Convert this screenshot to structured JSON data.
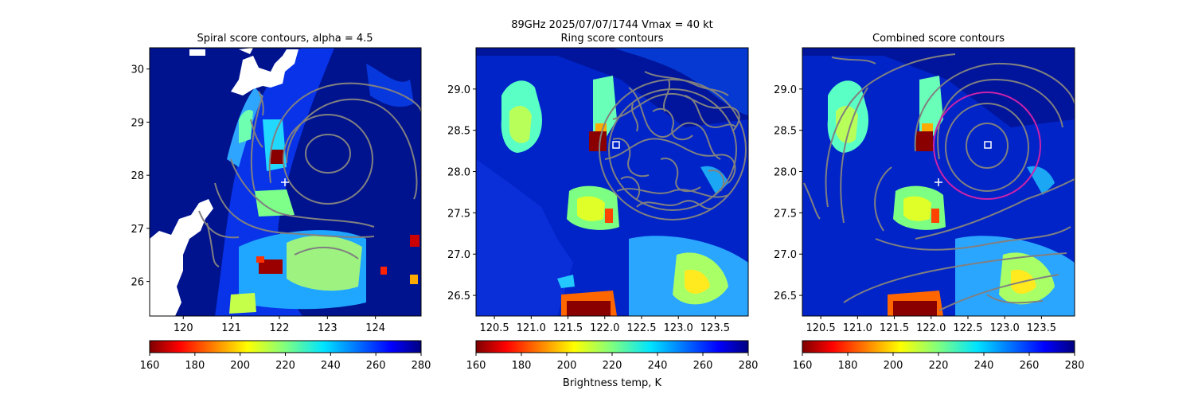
{
  "suptitle": "89GHz  2025/07/07/1744    Vmax = 40 kt",
  "xlabel_shared": "Brightness temp, K",
  "colorbar": {
    "ticks": [
      "160",
      "180",
      "200",
      "220",
      "240",
      "260",
      "280"
    ],
    "range": [
      160,
      280
    ],
    "colormap": "jet_reversed"
  },
  "chart_data": [
    {
      "type": "heatmap",
      "title": "Spiral score contours, alpha =  4.5",
      "xlim": [
        119.3,
        124.95
      ],
      "ylim": [
        25.35,
        30.4
      ],
      "xticks": [
        "120",
        "121",
        "122",
        "123",
        "124"
      ],
      "yticks": [
        "26",
        "27",
        "28",
        "29",
        "30"
      ],
      "contour_color": "#808080",
      "marker_plus": {
        "x": 122.1,
        "y": 27.85,
        "color": "#ffffff"
      },
      "missing_data_color": "#ffffff"
    },
    {
      "type": "heatmap",
      "title": "Ring score contours",
      "xlim": [
        120.25,
        123.95
      ],
      "ylim": [
        26.25,
        29.5
      ],
      "xticks": [
        "120.5",
        "121.0",
        "121.5",
        "122.0",
        "122.5",
        "123.0",
        "123.5"
      ],
      "yticks": [
        "26.5",
        "27.0",
        "27.5",
        "28.0",
        "28.5",
        "29.0"
      ],
      "contour_color": "#808080",
      "marker_square": {
        "x": 122.13,
        "y": 28.32,
        "color": "#ffffff"
      }
    },
    {
      "type": "heatmap",
      "title": "Combined score contours",
      "xlim": [
        120.25,
        123.95
      ],
      "ylim": [
        26.25,
        29.5
      ],
      "xticks": [
        "120.5",
        "121.0",
        "121.5",
        "122.0",
        "122.5",
        "123.0",
        "123.5"
      ],
      "yticks": [
        "26.5",
        "27.0",
        "27.5",
        "28.0",
        "28.5",
        "29.0"
      ],
      "contour_color": "#808080",
      "marker_square": {
        "x": 122.77,
        "y": 28.32,
        "color": "#ffffff"
      },
      "marker_plus": {
        "x": 122.08,
        "y": 27.87,
        "color": "#ffffff"
      },
      "ring_circle": {
        "cx": 122.77,
        "cy": 28.32,
        "r": 0.65,
        "color": "#cc22aa"
      }
    }
  ]
}
